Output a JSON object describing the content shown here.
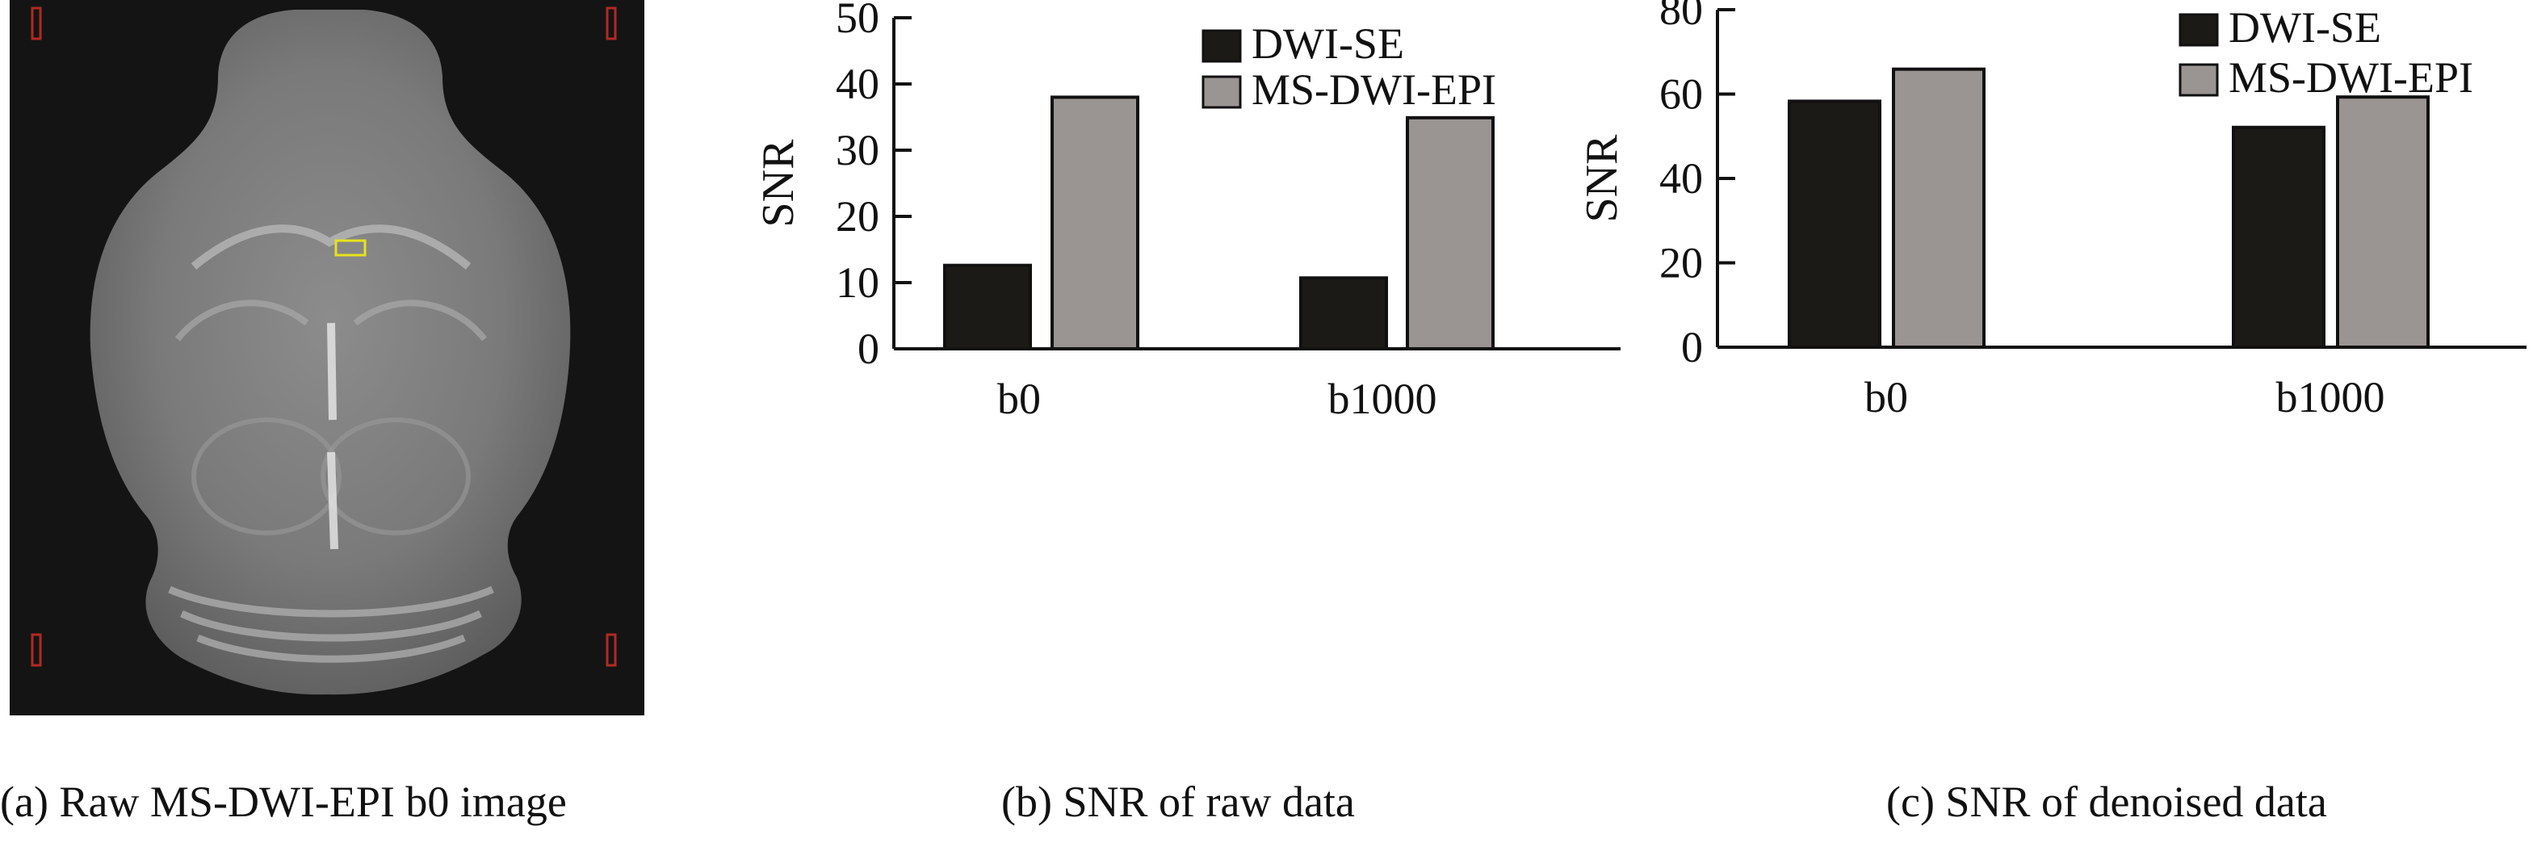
{
  "panel_a": {
    "caption": "(a) Raw MS-DWI-EPI b0 image"
  },
  "captions": {
    "b": "(b) SNR of raw data",
    "c": "(c) SNR of denoised data"
  },
  "colors": {
    "dwi_se": "#1c1a17",
    "ms_dwi_epi": "#9a9493",
    "roi_box": "#e8e21e",
    "corner_marker": "#b02a22",
    "axis": "#111111"
  },
  "chart_data": [
    {
      "type": "bar",
      "categories": [
        "b0",
        "b1000"
      ],
      "series": [
        {
          "name": "DWI-SE",
          "values": [
            12.6,
            10.7
          ]
        },
        {
          "name": "MS-DWI-EPI",
          "values": [
            38.0,
            34.9
          ]
        }
      ],
      "title": "",
      "xlabel": "",
      "ylabel": "SNR",
      "ylim": [
        0,
        50
      ],
      "yticks": [
        0,
        10,
        20,
        30,
        40,
        50
      ],
      "legend": "top-right",
      "grid": false
    },
    {
      "type": "bar",
      "categories": [
        "b0",
        "b1000"
      ],
      "series": [
        {
          "name": "DWI-SE",
          "values": [
            58.3,
            52.1
          ]
        },
        {
          "name": "MS-DWI-EPI",
          "values": [
            65.9,
            59.3
          ]
        }
      ],
      "title": "",
      "xlabel": "",
      "ylabel": "SNR",
      "ylim": [
        0,
        80
      ],
      "yticks": [
        0,
        20,
        40,
        60,
        80
      ],
      "legend": "top-right",
      "grid": false
    }
  ]
}
